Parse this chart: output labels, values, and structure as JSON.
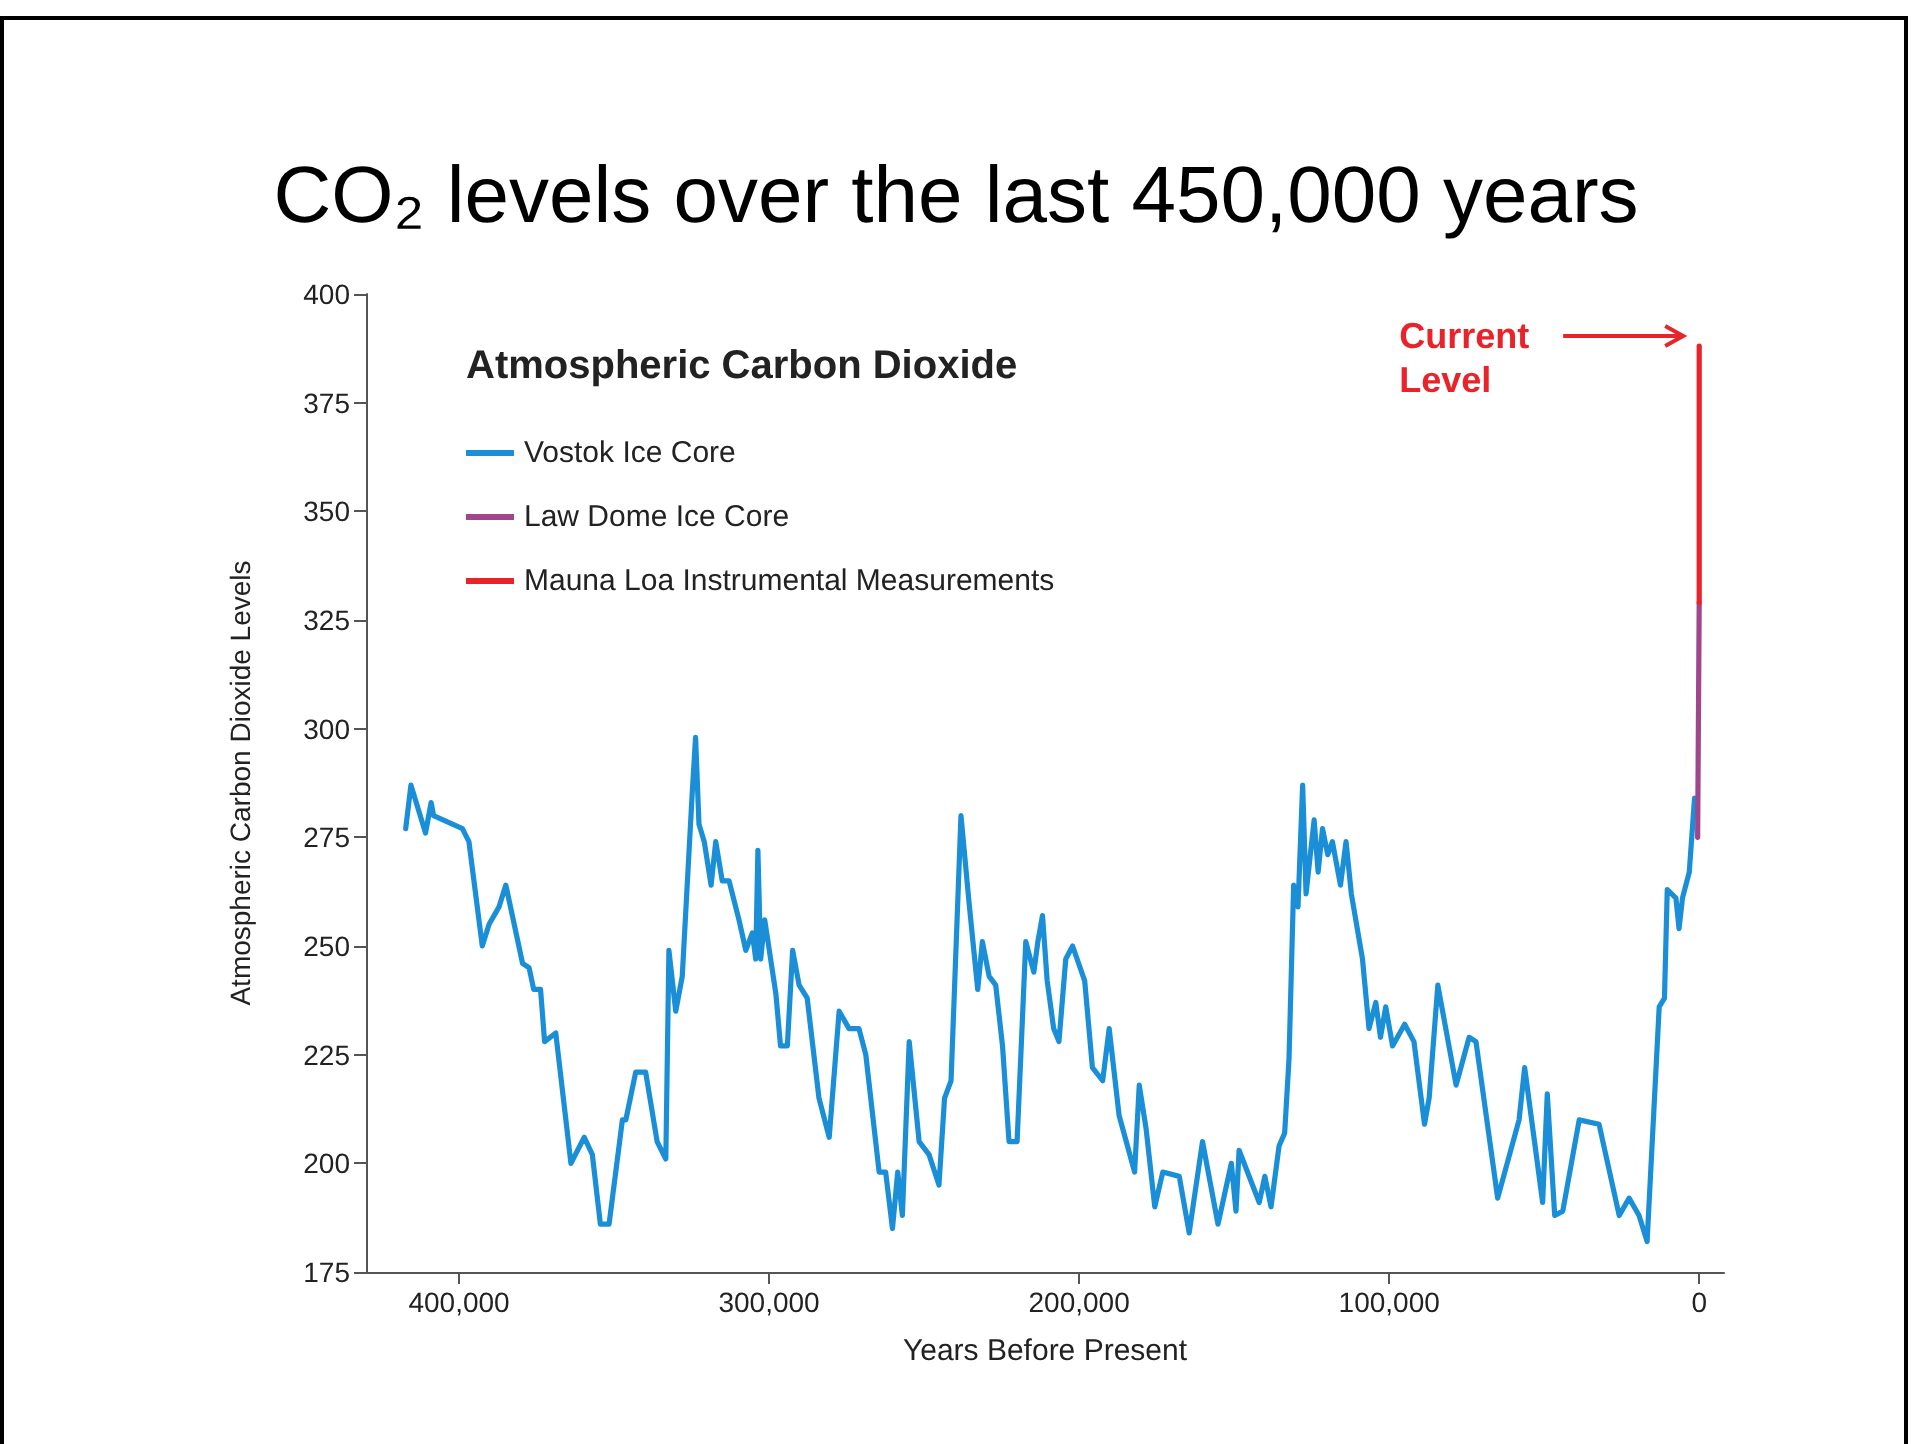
{
  "chart_data": {
    "type": "line",
    "title": "CO₂ levels over the last 450,000 years",
    "subtitle": "Atmospheric Carbon Dioxide",
    "xlabel": "Years Before Present",
    "ylabel": "Atmospheric Carbon Dioxide Levels",
    "xlim": [
      430000,
      -8000
    ],
    "xticks": [
      {
        "value": 400000,
        "label": "400,000"
      },
      {
        "value": 300000,
        "label": "300,000"
      },
      {
        "value": 200000,
        "label": "200,000"
      },
      {
        "value": 100000,
        "label": "100,000"
      },
      0
    ],
    "ylim": [
      175,
      400
    ],
    "yticks": [
      175,
      200,
      225,
      250,
      275,
      300,
      325,
      350,
      375,
      400
    ],
    "grid": false,
    "legend": "top left",
    "marker": "none",
    "line_style": "solid",
    "annotations": [
      "Current Level"
    ],
    "series": [
      {
        "name": "Vostok Ice Core",
        "color": "#1a8fd8",
        "x": [
          417200,
          415500,
          410800,
          409000,
          408200,
          398900,
          396800,
          392500,
          390300,
          387100,
          384900,
          379500,
          377400,
          375900,
          373700,
          372400,
          368800,
          363900,
          359600,
          357000,
          354400,
          351600,
          347300,
          346200,
          343000,
          339800,
          336100,
          333300,
          332300,
          330100,
          328000,
          324800,
          323700,
          322600,
          320900,
          318700,
          317200,
          315100,
          312900,
          309700,
          307500,
          305400,
          304300,
          303600,
          302700,
          301400,
          297800,
          296300,
          294100,
          292400,
          290300,
          287700,
          283900,
          280600,
          277400,
          274200,
          271000,
          268800,
          264500,
          262400,
          260200,
          258500,
          257000,
          254800,
          251600,
          248400,
          245200,
          243400,
          241300,
          238100,
          235500,
          232700,
          231200,
          229000,
          226900,
          224700,
          222600,
          220000,
          217200,
          214600,
          213300,
          211800,
          210300,
          208200,
          206500,
          204300,
          202100,
          198200,
          195700,
          192400,
          190300,
          187100,
          182100,
          180600,
          178400,
          175600,
          173000,
          167700,
          164500,
          160200,
          155200,
          150900,
          149400,
          148400,
          141900,
          140100,
          138100,
          135500,
          133700,
          132300,
          130800,
          129400,
          127900,
          126800,
          124200,
          122900,
          121500,
          119800,
          118300,
          115700,
          113900,
          112200,
          108600,
          106500,
          104300,
          102800,
          101100,
          98900,
          95000,
          92000,
          88600,
          87100,
          84300,
          78400,
          74200,
          72000,
          65000,
          58100,
          56300,
          50500,
          49000,
          46600,
          44000,
          38700,
          32300,
          25800,
          22600,
          19400,
          16800,
          12900,
          11200,
          10300,
          7500,
          6500,
          5400,
          3200,
          1500,
          1000
        ],
        "values": [
          277,
          287,
          276,
          283,
          280,
          277,
          274,
          250,
          255,
          259,
          264,
          246,
          245,
          240,
          240,
          228,
          230,
          200,
          206,
          202,
          186,
          186,
          210,
          210,
          221,
          221,
          205,
          201,
          249,
          235,
          243,
          285,
          298,
          278,
          274,
          264,
          274,
          265,
          265,
          256,
          249,
          253,
          247,
          272,
          247,
          256,
          239,
          227,
          227,
          249,
          241,
          238,
          215,
          206,
          235,
          231,
          231,
          225,
          198,
          198,
          185,
          198,
          188,
          228,
          205,
          202,
          195,
          215,
          219,
          280,
          260,
          240,
          251,
          243,
          241,
          227,
          205,
          205,
          251,
          244,
          251,
          257,
          242,
          231,
          228,
          247,
          250,
          242,
          222,
          219,
          231,
          211,
          198,
          218,
          208,
          190,
          198,
          197,
          184,
          205,
          186,
          200,
          189,
          203,
          191,
          197,
          190,
          204,
          207,
          224,
          264,
          259,
          287,
          262,
          279,
          267,
          277,
          271,
          274,
          264,
          274,
          262,
          247,
          231,
          237,
          229,
          236,
          227,
          232,
          228,
          209,
          215,
          241,
          218,
          229,
          228,
          192,
          210,
          222,
          191,
          216,
          188,
          189,
          210,
          209,
          188,
          192,
          188,
          182,
          236,
          238,
          263,
          261,
          254,
          261,
          267,
          284,
          280
        ]
      },
      {
        "name": "Law Dome Ice Core",
        "color": "#a0468c",
        "x": [
          500,
          0
        ],
        "values": [
          275,
          329
        ]
      },
      {
        "name": "Mauna Loa Instrumental Measurements",
        "color": "#e8232a",
        "x": [
          0,
          0
        ],
        "values": [
          329,
          388
        ]
      }
    ]
  }
}
